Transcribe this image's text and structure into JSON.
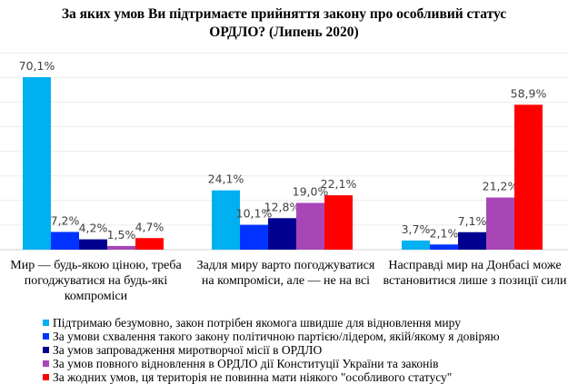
{
  "chart_data": {
    "type": "bar",
    "title": "За яких умов Ви підтримаєте прийняття закону про особливий статус ОРДЛО? (Липень 2020)",
    "title_lines": [
      "За яких умов Ви підтримаєте прийняття закону про особливий статус",
      "ОРДЛО? (Липень 2020)"
    ],
    "categories": [
      "Мир — будь-якою ціною, треба погоджуватися на будь-які компроміси",
      "Задля миру варто погоджуватися на компроміси, але — не на всі",
      "Насправді мир на Донбасі може встановитися лише з позиції сили"
    ],
    "series": [
      {
        "name": "Підтримаю безумовно, закон потрібен якомога швидше для відновлення миру",
        "color": "#00b0f0",
        "values": [
          70.1,
          24.1,
          3.7
        ],
        "labels": [
          "70,1%",
          "24,1%",
          "3,7%"
        ]
      },
      {
        "name": "За умови схвалення такого закону політичною партією/лідером, якій/якому я довіряю",
        "color": "#0033ff",
        "values": [
          7.2,
          10.1,
          2.1
        ],
        "labels": [
          "7,2%",
          "10,1%",
          "2,1%"
        ]
      },
      {
        "name": "За умов запровадження миротворчої місії в ОРДЛО",
        "color": "#000090",
        "values": [
          4.2,
          12.8,
          7.1
        ],
        "labels": [
          "4,2%",
          "12,8%",
          "7,1%"
        ]
      },
      {
        "name": "За умов повного відновлення в ОРДЛО дії Конституції України та законів",
        "color": "#a846b8",
        "values": [
          1.5,
          19.0,
          21.2
        ],
        "labels": [
          "1,5%",
          "19,0%",
          "21,2%"
        ]
      },
      {
        "name": "За жодних умов, ця територія не повинна мати ніякого \"особливого статусу\"",
        "color": "#ff0000",
        "values": [
          4.7,
          22.1,
          58.9
        ],
        "labels": [
          "4,7%",
          "22,1%",
          "58,9%"
        ]
      }
    ],
    "ylim": [
      0,
      80
    ],
    "grid": true,
    "legend": "bottom-left"
  }
}
